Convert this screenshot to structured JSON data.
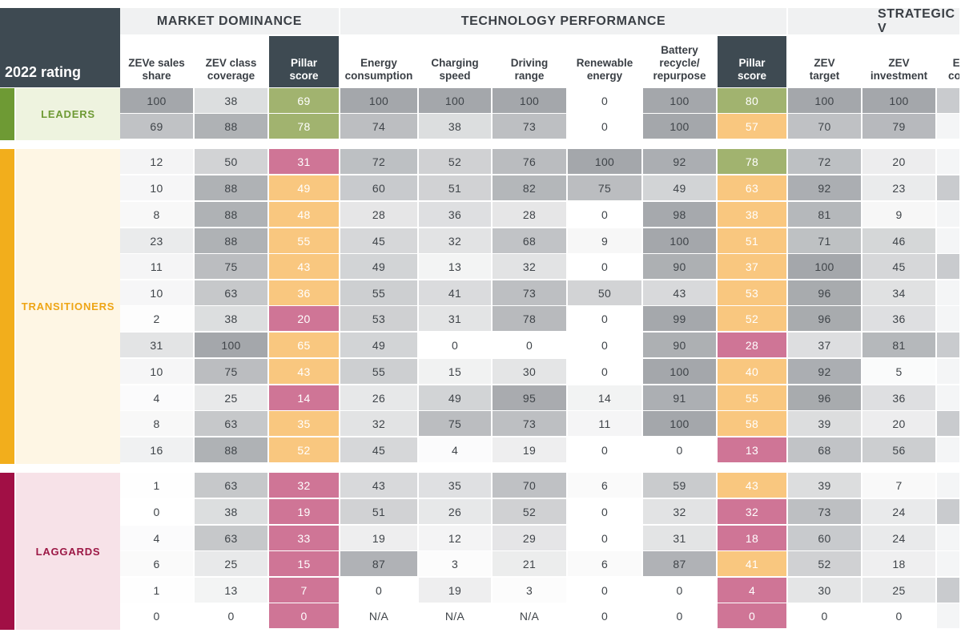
{
  "chart_data": {
    "type": "table",
    "rating_header": "2022 rating",
    "groups": [
      {
        "title": "MARKET DOMINANCE",
        "columns": [
          "zeve_sales_share",
          "zev_class_coverage",
          "pillar_market"
        ]
      },
      {
        "title": "TECHNOLOGY PERFORMANCE",
        "columns": [
          "energy_consumption",
          "charging_speed",
          "driving_range",
          "renewable_energy",
          "battery_recycle",
          "pillar_technology"
        ]
      },
      {
        "title": "STRATEGIC V",
        "columns": [
          "zev_target",
          "zev_investment",
          "ex_com"
        ]
      }
    ],
    "columns": [
      {
        "key": "zeve_sales_share",
        "lines": [
          "ZEVe sales",
          "share"
        ],
        "pillar": false
      },
      {
        "key": "zev_class_coverage",
        "lines": [
          "ZEV class",
          "coverage"
        ],
        "pillar": false
      },
      {
        "key": "pillar_market",
        "lines": [
          "Pillar",
          "score"
        ],
        "pillar": true
      },
      {
        "key": "energy_consumption",
        "lines": [
          "Energy",
          "consumption"
        ],
        "pillar": false
      },
      {
        "key": "charging_speed",
        "lines": [
          "Charging",
          "speed"
        ],
        "pillar": false
      },
      {
        "key": "driving_range",
        "lines": [
          "Driving",
          "range"
        ],
        "pillar": false
      },
      {
        "key": "renewable_energy",
        "lines": [
          "Renewable",
          "energy"
        ],
        "pillar": false
      },
      {
        "key": "battery_recycle",
        "lines": [
          "Battery",
          "recycle/",
          "repurpose"
        ],
        "pillar": false
      },
      {
        "key": "pillar_technology",
        "lines": [
          "Pillar",
          "score"
        ],
        "pillar": true
      },
      {
        "key": "zev_target",
        "lines": [
          "ZEV",
          "target"
        ],
        "pillar": false
      },
      {
        "key": "zev_investment",
        "lines": [
          "ZEV",
          "investment"
        ],
        "pillar": false
      },
      {
        "key": "ex_com",
        "lines": [
          "Ex",
          "com"
        ],
        "pillar": false
      }
    ],
    "categories": [
      {
        "label": "LEADERS",
        "color": "#6e9a34",
        "bg": "#eef3df",
        "text_color": "#6e9a34"
      },
      {
        "label": "TRANSITIONERS",
        "color": "#f2ae1c",
        "bg": "#fef6e4",
        "text_color": "#eea515"
      },
      {
        "label": "LAGGARDS",
        "color": "#a10f45",
        "bg": "#f7e2e8",
        "text_color": "#9c1845"
      }
    ],
    "pillar_colors": {
      "high": "#a1b36f",
      "mid": "#f9c77f",
      "low": "#cf7596"
    },
    "rows": [
      {
        "category": 0,
        "values": [
          100,
          38,
          69,
          100,
          100,
          100,
          0,
          100,
          80,
          100,
          100,
          null
        ]
      },
      {
        "category": 0,
        "values": [
          69,
          88,
          78,
          74,
          38,
          73,
          0,
          100,
          57,
          70,
          79,
          null
        ]
      },
      {
        "category": 1,
        "values": [
          12,
          50,
          31,
          72,
          52,
          76,
          100,
          92,
          78,
          72,
          20,
          null
        ]
      },
      {
        "category": 1,
        "values": [
          10,
          88,
          49,
          60,
          51,
          82,
          75,
          49,
          63,
          92,
          23,
          null
        ]
      },
      {
        "category": 1,
        "values": [
          8,
          88,
          48,
          28,
          36,
          28,
          0,
          98,
          38,
          81,
          9,
          null
        ]
      },
      {
        "category": 1,
        "values": [
          23,
          88,
          55,
          45,
          32,
          68,
          9,
          100,
          51,
          71,
          46,
          null
        ]
      },
      {
        "category": 1,
        "values": [
          11,
          75,
          43,
          49,
          13,
          32,
          0,
          90,
          37,
          100,
          45,
          null
        ]
      },
      {
        "category": 1,
        "values": [
          10,
          63,
          36,
          55,
          41,
          73,
          50,
          43,
          53,
          96,
          34,
          null
        ]
      },
      {
        "category": 1,
        "values": [
          2,
          38,
          20,
          53,
          31,
          78,
          0,
          99,
          52,
          96,
          36,
          null
        ]
      },
      {
        "category": 1,
        "values": [
          31,
          100,
          65,
          49,
          0,
          0,
          0,
          90,
          28,
          37,
          81,
          null
        ]
      },
      {
        "category": 1,
        "values": [
          10,
          75,
          43,
          55,
          15,
          30,
          0,
          100,
          40,
          92,
          5,
          null
        ]
      },
      {
        "category": 1,
        "values": [
          4,
          25,
          14,
          26,
          49,
          95,
          14,
          91,
          55,
          96,
          36,
          null
        ]
      },
      {
        "category": 1,
        "values": [
          8,
          63,
          35,
          32,
          75,
          73,
          11,
          100,
          58,
          39,
          20,
          null
        ]
      },
      {
        "category": 1,
        "values": [
          16,
          88,
          52,
          45,
          4,
          19,
          0,
          0,
          13,
          68,
          56,
          null
        ]
      },
      {
        "category": 2,
        "values": [
          1,
          63,
          32,
          43,
          35,
          70,
          6,
          59,
          43,
          39,
          7,
          null
        ]
      },
      {
        "category": 2,
        "values": [
          0,
          38,
          19,
          51,
          26,
          52,
          0,
          32,
          32,
          73,
          24,
          null
        ]
      },
      {
        "category": 2,
        "values": [
          4,
          63,
          33,
          19,
          12,
          29,
          0,
          31,
          18,
          60,
          24,
          null
        ]
      },
      {
        "category": 2,
        "values": [
          6,
          25,
          15,
          87,
          3,
          21,
          6,
          87,
          41,
          52,
          18,
          null
        ]
      },
      {
        "category": 2,
        "values": [
          1,
          13,
          7,
          0,
          19,
          3,
          0,
          0,
          4,
          30,
          25,
          null
        ]
      },
      {
        "category": 2,
        "values": [
          0,
          0,
          0,
          "N/A",
          "N/A",
          "N/A",
          0,
          0,
          0,
          0,
          0,
          null
        ]
      }
    ]
  }
}
